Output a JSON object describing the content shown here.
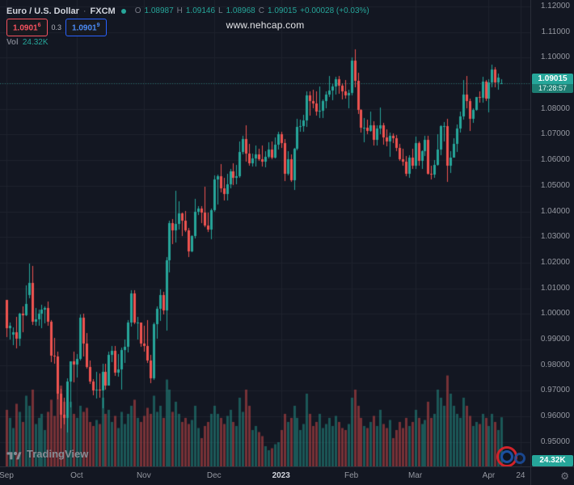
{
  "legend": {
    "symbol": "Euro / U.S. Dollar",
    "separator": "·",
    "exchange": "FXCM",
    "ohlc": {
      "o_label": "O",
      "o": "1.08987",
      "h_label": "H",
      "h": "1.09146",
      "l_label": "L",
      "l": "1.08968",
      "c_label": "C",
      "c": "1.09015",
      "change": "+0.00028 (+0.03%)"
    },
    "quote": {
      "sell_main": "1.0901",
      "sell_sup": "6",
      "spread": "0.3",
      "buy_main": "1.0901",
      "buy_sup": "9"
    },
    "volume": {
      "label": "Vol",
      "value": "24.32K"
    }
  },
  "watermark": {
    "text": "www.nehcap.com"
  },
  "price_axis": {
    "labels": [
      "1.12000",
      "1.11000",
      "1.10000",
      "1.09000",
      "1.08000",
      "1.07000",
      "1.06000",
      "1.05000",
      "1.04000",
      "1.03000",
      "1.02000",
      "1.01000",
      "1.00000",
      "0.99000",
      "0.98000",
      "0.97000",
      "0.96000",
      "0.95000"
    ],
    "last_price": "1.09015",
    "countdown": "17:28:57",
    "volume_value": "24.32K"
  },
  "time_axis": {
    "labels": [
      {
        "label": "Sep",
        "index": 0
      },
      {
        "label": "Oct",
        "index": 22
      },
      {
        "label": "Nov",
        "index": 43
      },
      {
        "label": "Dec",
        "index": 65
      },
      {
        "label": "2023",
        "index": 86,
        "emphasis": true
      },
      {
        "label": "Feb",
        "index": 108
      },
      {
        "label": "Mar",
        "index": 128
      },
      {
        "label": "Apr",
        "index": 151
      },
      {
        "label": "24",
        "index": 161
      }
    ],
    "gear_icon": "⚙"
  },
  "footer": {
    "attribution": "TradingView"
  },
  "colors": {
    "up": "#26a69a",
    "down": "#ef5350",
    "background": "#131722",
    "grid": "#1e222d",
    "axis_text": "#9598a1",
    "accent_blue": "#2962ff",
    "accent_red": "#f7525f"
  },
  "chart_data": {
    "type": "candlestick",
    "title": "Euro / U.S. Dollar · FXCM",
    "symbol": "EURUSD",
    "y_axis": {
      "min": 0.95,
      "max": 1.12,
      "step": 0.01
    },
    "ohlc_format": [
      "open",
      "high",
      "low",
      "close"
    ],
    "candles": [
      [
        1.0054,
        1.0055,
        0.991,
        0.9945
      ],
      [
        0.9945,
        0.9965,
        0.9899,
        0.9953
      ],
      [
        0.992,
        0.9948,
        0.9878,
        0.9928
      ],
      [
        0.9928,
        0.9987,
        0.9864,
        0.9903
      ],
      [
        0.9903,
        1.0005,
        0.9874,
        1.0001
      ],
      [
        1.0001,
        1.0029,
        0.993,
        0.9995
      ],
      [
        0.9995,
        1.0113,
        0.9993,
        1.004
      ],
      [
        1.0074,
        1.0198,
        1.006,
        1.012
      ],
      [
        1.012,
        1.0187,
        0.9956,
        0.997
      ],
      [
        0.997,
        1.0023,
        0.9955,
        0.9979
      ],
      [
        0.9979,
        1.0018,
        0.9954,
        1.0
      ],
      [
        1.0,
        1.0036,
        0.9945,
        1.0016
      ],
      [
        1.0016,
        1.0029,
        0.9964,
        1.0023
      ],
      [
        1.0023,
        1.005,
        0.9955,
        0.9971
      ],
      [
        0.9971,
        0.9976,
        0.9813,
        0.9837
      ],
      [
        0.9837,
        0.9907,
        0.9807,
        0.9835
      ],
      [
        0.9835,
        0.9852,
        0.9667,
        0.969
      ],
      [
        0.969,
        0.9709,
        0.9554,
        0.9608
      ],
      [
        0.9608,
        0.9672,
        0.957,
        0.9593
      ],
      [
        0.9593,
        0.975,
        0.9536,
        0.9735
      ],
      [
        0.9735,
        0.9816,
        0.9634,
        0.9815
      ],
      [
        0.9815,
        0.9853,
        0.9733,
        0.9802
      ],
      [
        0.9802,
        0.9844,
        0.9751,
        0.9826
      ],
      [
        0.9826,
        0.9999,
        0.9817,
        0.9986
      ],
      [
        0.9986,
        1.0,
        0.9835,
        0.9884
      ],
      [
        0.9884,
        0.9926,
        0.9787,
        0.9793
      ],
      [
        0.9793,
        0.9817,
        0.9727,
        0.9737
      ],
      [
        0.9737,
        0.9747,
        0.9681,
        0.9703
      ],
      [
        0.9703,
        0.9774,
        0.967,
        0.9706
      ],
      [
        0.9706,
        0.9767,
        0.9672,
        0.9701
      ],
      [
        0.9701,
        0.9807,
        0.9632,
        0.9775
      ],
      [
        0.9775,
        0.9807,
        0.9704,
        0.9721
      ],
      [
        0.9721,
        0.9852,
        0.9721,
        0.984
      ],
      [
        0.984,
        0.9875,
        0.9813,
        0.9857
      ],
      [
        0.9857,
        0.9874,
        0.9757,
        0.9772
      ],
      [
        0.9772,
        0.9844,
        0.9756,
        0.9785
      ],
      [
        0.9785,
        0.987,
        0.9706,
        0.986
      ],
      [
        0.986,
        0.9899,
        0.9808,
        0.9873
      ],
      [
        0.9873,
        0.9976,
        0.9851,
        0.9967
      ],
      [
        0.9967,
        1.0093,
        0.9952,
        1.008
      ],
      [
        1.008,
        1.0094,
        0.9959,
        0.9965
      ],
      [
        0.9965,
        0.999,
        0.9899,
        0.9965
      ],
      [
        0.9965,
        0.9967,
        0.9872,
        0.9884
      ],
      [
        0.9884,
        0.9953,
        0.9853,
        0.9876
      ],
      [
        0.9876,
        0.9976,
        0.981,
        0.9818
      ],
      [
        0.9818,
        0.984,
        0.973,
        0.9749
      ],
      [
        0.9749,
        0.9967,
        0.9741,
        0.9959
      ],
      [
        0.9959,
        1.0031,
        0.9903,
        1.002
      ],
      [
        1.002,
        1.0096,
        0.9972,
        1.0074
      ],
      [
        1.0074,
        1.0087,
        0.9998,
        1.0013
      ],
      [
        1.0013,
        1.0222,
        0.9936,
        1.021
      ],
      [
        1.021,
        1.0364,
        1.0163,
        1.0354
      ],
      [
        1.0354,
        1.0369,
        1.0271,
        1.0325
      ],
      [
        1.0325,
        1.048,
        1.028,
        1.035
      ],
      [
        1.035,
        1.0439,
        1.033,
        1.0393
      ],
      [
        1.0393,
        1.0395,
        1.0305,
        1.0363
      ],
      [
        1.0363,
        1.0402,
        1.032,
        1.0325
      ],
      [
        1.0325,
        1.0334,
        1.0222,
        1.0243
      ],
      [
        1.0243,
        1.0308,
        1.024,
        1.0304
      ],
      [
        1.0304,
        1.0448,
        1.0296,
        1.0398
      ],
      [
        1.0398,
        1.0422,
        1.0386,
        1.041
      ],
      [
        1.041,
        1.042,
        1.0355,
        1.0397
      ],
      [
        1.0397,
        1.0497,
        1.034,
        1.0344
      ],
      [
        1.0344,
        1.0394,
        1.0319,
        1.0328
      ],
      [
        1.0328,
        1.041,
        1.029,
        1.0406
      ],
      [
        1.0406,
        1.0539,
        1.04,
        1.0525
      ],
      [
        1.0525,
        1.0545,
        1.0428,
        1.0538
      ],
      [
        1.0538,
        1.0585,
        1.0475,
        1.049
      ],
      [
        1.049,
        1.0531,
        1.0442,
        1.0468
      ],
      [
        1.0468,
        1.0547,
        1.0443,
        1.0507
      ],
      [
        1.0507,
        1.0565,
        1.0489,
        1.0556
      ],
      [
        1.0556,
        1.0589,
        1.0504,
        1.053
      ],
      [
        1.053,
        1.058,
        1.0505,
        1.0536
      ],
      [
        1.0536,
        1.0673,
        1.053,
        1.0633
      ],
      [
        1.0633,
        1.0695,
        1.0622,
        1.0682
      ],
      [
        1.0682,
        1.0737,
        1.0594,
        1.0627
      ],
      [
        1.0627,
        1.0664,
        1.0577,
        1.0588
      ],
      [
        1.0588,
        1.0625,
        1.0574,
        1.0607
      ],
      [
        1.0607,
        1.0658,
        1.0576,
        1.0622
      ],
      [
        1.0622,
        1.0645,
        1.0596,
        1.0604
      ],
      [
        1.0604,
        1.0658,
        1.0575,
        1.0593
      ],
      [
        1.0593,
        1.0636,
        1.0573,
        1.0614
      ],
      [
        1.0614,
        1.067,
        1.0608,
        1.064
      ],
      [
        1.064,
        1.0672,
        1.0604,
        1.061
      ],
      [
        1.061,
        1.0688,
        1.0607,
        1.066
      ],
      [
        1.066,
        1.0712,
        1.0643,
        1.0702
      ],
      [
        1.0702,
        1.071,
        1.0649,
        1.0667
      ],
      [
        1.0667,
        1.0683,
        1.0519,
        1.0547
      ],
      [
        1.0547,
        1.0635,
        1.0542,
        1.0603
      ],
      [
        1.0603,
        1.0621,
        1.0515,
        1.0522
      ],
      [
        1.0522,
        1.0648,
        1.0483,
        1.0644
      ],
      [
        1.0644,
        1.076,
        1.0639,
        1.073
      ],
      [
        1.073,
        1.0758,
        1.0711,
        1.0733
      ],
      [
        1.0733,
        1.0776,
        1.071,
        1.0756
      ],
      [
        1.0756,
        1.0867,
        1.0729,
        1.0852
      ],
      [
        1.0852,
        1.0869,
        1.0775,
        1.083
      ],
      [
        1.083,
        1.0874,
        1.0801,
        1.0822
      ],
      [
        1.0822,
        1.087,
        1.0774,
        1.0789
      ],
      [
        1.0789,
        1.0887,
        1.0766,
        1.0793
      ],
      [
        1.0793,
        1.0836,
        1.0766,
        1.0832
      ],
      [
        1.0832,
        1.0869,
        1.0802,
        1.0856
      ],
      [
        1.0856,
        1.0927,
        1.0848,
        1.0871
      ],
      [
        1.0871,
        1.0898,
        1.0835,
        1.0886
      ],
      [
        1.0886,
        1.0924,
        1.0855,
        1.0915
      ],
      [
        1.0915,
        1.0929,
        1.0858,
        1.0892
      ],
      [
        1.0892,
        1.09,
        1.0838,
        1.0869
      ],
      [
        1.0869,
        1.0914,
        1.0839,
        1.0852
      ],
      [
        1.0852,
        1.0874,
        1.0801,
        1.0863
      ],
      [
        1.0863,
        1.1001,
        1.0852,
        1.0987
      ],
      [
        1.0987,
        1.1033,
        1.0885,
        1.0911
      ],
      [
        1.0911,
        1.094,
        1.078,
        1.0795
      ],
      [
        1.0795,
        1.0798,
        1.0709,
        1.0726
      ],
      [
        1.0726,
        1.0766,
        1.067,
        1.0727
      ],
      [
        1.0727,
        1.0759,
        1.0702,
        1.0713
      ],
      [
        1.0713,
        1.0791,
        1.0711,
        1.0737
      ],
      [
        1.0737,
        1.0752,
        1.0656,
        1.0679
      ],
      [
        1.0679,
        1.0737,
        1.0656,
        1.0722
      ],
      [
        1.0722,
        1.0804,
        1.0701,
        1.0735
      ],
      [
        1.0735,
        1.0744,
        1.0659,
        1.069
      ],
      [
        1.069,
        1.0721,
        1.0655,
        1.0673
      ],
      [
        1.0673,
        1.0707,
        1.0613,
        1.0695
      ],
      [
        1.0695,
        1.0705,
        1.0668,
        1.0686
      ],
      [
        1.0686,
        1.0698,
        1.0636,
        1.0647
      ],
      [
        1.0647,
        1.0663,
        1.0598,
        1.0605
      ],
      [
        1.0605,
        1.0644,
        1.0577,
        1.0595
      ],
      [
        1.0595,
        1.0617,
        1.0536,
        1.0546
      ],
      [
        1.0546,
        1.062,
        1.0532,
        1.0609
      ],
      [
        1.0609,
        1.0645,
        1.0565,
        1.0577
      ],
      [
        1.0577,
        1.0691,
        1.0565,
        1.0666
      ],
      [
        1.0666,
        1.0673,
        1.0577,
        1.0598
      ],
      [
        1.0598,
        1.0638,
        1.0567,
        1.0635
      ],
      [
        1.0635,
        1.0694,
        1.0616,
        1.068
      ],
      [
        1.068,
        1.0695,
        1.0545,
        1.0548
      ],
      [
        1.0548,
        1.0578,
        1.0524,
        1.0545
      ],
      [
        1.0545,
        1.06,
        1.0532,
        1.0581
      ],
      [
        1.0581,
        1.0701,
        1.0577,
        1.0643
      ],
      [
        1.0643,
        1.0737,
        1.062,
        1.0733
      ],
      [
        1.0733,
        1.0749,
        1.0674,
        1.0734
      ],
      [
        1.0734,
        1.076,
        1.0516,
        1.0577
      ],
      [
        1.0577,
        1.0635,
        1.0551,
        1.0611
      ],
      [
        1.0611,
        1.0686,
        1.0611,
        1.0665
      ],
      [
        1.0665,
        1.074,
        1.0632,
        1.0723
      ],
      [
        1.0723,
        1.0789,
        1.0709,
        1.077
      ],
      [
        1.077,
        1.0912,
        1.0758,
        1.0856
      ],
      [
        1.0856,
        1.093,
        1.0803,
        1.083
      ],
      [
        1.083,
        1.084,
        1.0714,
        1.076
      ],
      [
        1.076,
        1.0803,
        1.0745,
        1.0796
      ],
      [
        1.0796,
        1.0848,
        1.0792,
        1.0846
      ],
      [
        1.0846,
        1.0867,
        1.0823,
        1.0843
      ],
      [
        1.0843,
        1.0926,
        1.0824,
        1.0905
      ],
      [
        1.0905,
        1.0914,
        1.0831,
        1.0839
      ],
      [
        1.0839,
        1.0917,
        1.0788,
        1.0902
      ],
      [
        1.0902,
        1.0973,
        1.0883,
        1.0953
      ],
      [
        1.0953,
        1.0963,
        1.0885,
        1.0903
      ],
      [
        1.0903,
        1.0938,
        1.0875,
        1.0921
      ],
      [
        1.08987,
        1.09146,
        1.08968,
        1.09015
      ]
    ],
    "volumes": [
      28,
      24,
      19,
      31,
      27,
      22,
      35,
      30,
      38,
      21,
      24,
      26,
      18,
      27,
      33,
      25,
      36,
      40,
      32,
      42,
      32,
      26,
      24,
      30,
      27,
      29,
      22,
      20,
      23,
      21,
      34,
      26,
      28,
      22,
      25,
      19,
      27,
      21,
      26,
      30,
      33,
      24,
      22,
      25,
      29,
      26,
      35,
      27,
      30,
      24,
      43,
      38,
      27,
      32,
      26,
      22,
      24,
      21,
      23,
      30,
      19,
      14,
      20,
      22,
      26,
      30,
      26,
      24,
      21,
      25,
      28,
      22,
      20,
      34,
      27,
      38,
      30,
      18,
      20,
      17,
      15,
      10,
      8,
      9,
      11,
      12,
      18,
      26,
      22,
      24,
      30,
      24,
      18,
      21,
      36,
      26,
      20,
      22,
      26,
      19,
      21,
      24,
      20,
      25,
      22,
      19,
      18,
      21,
      34,
      38,
      30,
      24,
      20,
      19,
      22,
      25,
      20,
      28,
      21,
      19,
      23,
      14,
      18,
      22,
      19,
      24,
      20,
      22,
      28,
      24,
      21,
      23,
      32,
      24,
      26,
      38,
      34,
      30,
      45,
      36,
      30,
      26,
      24,
      34,
      30,
      25,
      20,
      22,
      21,
      26,
      24,
      20,
      26,
      22,
      18,
      24.32
    ],
    "last_volume_label": "24.32K"
  }
}
